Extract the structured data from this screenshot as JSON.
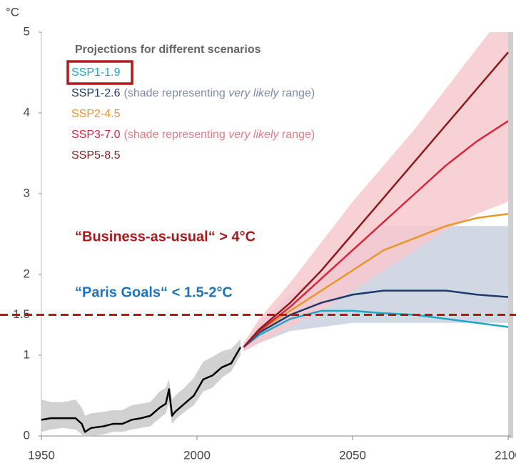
{
  "chart_data": {
    "type": "line",
    "y_label": "°C",
    "xlim": [
      1950,
      2100
    ],
    "xticks": [
      1950,
      2000,
      2050,
      2100
    ],
    "ylim": [
      0,
      5
    ],
    "yticks": [
      0,
      1,
      1.5,
      2,
      3,
      4,
      5
    ],
    "legend_title": "Projections for different scenarios",
    "legend_position": "upper left",
    "reference_line": {
      "value": 1.5,
      "color": "#b11a1a"
    },
    "annotations": [
      {
        "text": "“Business-as-usual“ > 4°C",
        "color": "#a8191e"
      },
      {
        "text": "“Paris Goals“ < 1.5-2°C",
        "color": "#1c74bb"
      }
    ],
    "series": [
      {
        "color": "#000000",
        "range_color": "#c9c9c9",
        "x": [
          1950,
          1953,
          1957,
          1961,
          1963,
          1964,
          1966,
          1970,
          1973,
          1976,
          1979,
          1982,
          1985,
          1988,
          1990,
          1991,
          1992,
          1993,
          1996,
          1999,
          2002,
          2005,
          2008,
          2011,
          2014
        ],
        "values": [
          0.2,
          0.22,
          0.22,
          0.22,
          0.15,
          0.05,
          0.1,
          0.12,
          0.15,
          0.15,
          0.2,
          0.22,
          0.25,
          0.35,
          0.4,
          0.58,
          0.25,
          0.3,
          0.4,
          0.5,
          0.7,
          0.75,
          0.85,
          0.9,
          1.1
        ],
        "low": [
          0.05,
          0.08,
          0.1,
          0.08,
          0.02,
          -0.05,
          0.0,
          0.02,
          0.05,
          0.05,
          0.08,
          0.1,
          0.12,
          0.22,
          0.28,
          0.4,
          0.15,
          0.2,
          0.3,
          0.38,
          0.55,
          0.6,
          0.72,
          0.8,
          1.0
        ],
        "high": [
          0.45,
          0.42,
          0.42,
          0.45,
          0.35,
          0.25,
          0.28,
          0.3,
          0.32,
          0.32,
          0.38,
          0.4,
          0.42,
          0.55,
          0.6,
          0.7,
          0.45,
          0.5,
          0.6,
          0.72,
          0.92,
          0.98,
          1.05,
          1.08,
          1.2
        ]
      },
      {
        "name": "SSP1-1.9",
        "color": "#1fa6c9",
        "x": [
          2015,
          2020,
          2030,
          2040,
          2050,
          2060,
          2070,
          2080,
          2090,
          2100
        ],
        "values": [
          1.1,
          1.25,
          1.45,
          1.55,
          1.55,
          1.52,
          1.5,
          1.45,
          1.4,
          1.35
        ]
      },
      {
        "name": "SSP1-2.6",
        "note": [
          "(shade representing ",
          "very likely",
          " range)"
        ],
        "note_color": "#7d8ca8",
        "color": "#1d3a6e",
        "range_color": "#c9d1de",
        "x": [
          2015,
          2020,
          2030,
          2040,
          2050,
          2060,
          2070,
          2080,
          2090,
          2100
        ],
        "values": [
          1.1,
          1.28,
          1.5,
          1.65,
          1.75,
          1.8,
          1.8,
          1.8,
          1.75,
          1.72
        ],
        "low": [
          1.05,
          1.15,
          1.3,
          1.35,
          1.4,
          1.4,
          1.4,
          1.4,
          1.4,
          1.4
        ],
        "high": [
          1.15,
          1.4,
          1.75,
          2.0,
          2.3,
          2.6,
          2.6,
          2.6,
          2.6,
          2.6
        ]
      },
      {
        "name": "SSP2-4.5",
        "color": "#e9962b",
        "x": [
          2015,
          2020,
          2030,
          2040,
          2050,
          2060,
          2070,
          2080,
          2090,
          2100
        ],
        "values": [
          1.1,
          1.3,
          1.55,
          1.8,
          2.05,
          2.3,
          2.45,
          2.6,
          2.7,
          2.75
        ]
      },
      {
        "name": "SSP3-7.0",
        "note": [
          "(shade representing ",
          "very likely",
          " range)"
        ],
        "note_color": "#e27c86",
        "color": "#d7263d",
        "range_color": "#f7c9ce",
        "x": [
          2015,
          2020,
          2030,
          2040,
          2050,
          2060,
          2070,
          2080,
          2090,
          2100
        ],
        "values": [
          1.1,
          1.3,
          1.6,
          1.95,
          2.3,
          2.65,
          3.0,
          3.35,
          3.65,
          3.9
        ],
        "low": [
          1.05,
          1.15,
          1.35,
          1.55,
          1.8,
          2.05,
          2.3,
          2.55,
          2.75,
          2.9
        ],
        "high": [
          1.15,
          1.45,
          1.9,
          2.4,
          2.9,
          3.35,
          3.8,
          4.3,
          4.8,
          5.3
        ]
      },
      {
        "name": "SSP5-8.5",
        "color": "#8b1a1f",
        "x": [
          2015,
          2020,
          2030,
          2040,
          2050,
          2060,
          2070,
          2080,
          2090,
          2100
        ],
        "values": [
          1.1,
          1.32,
          1.65,
          2.05,
          2.5,
          2.95,
          3.4,
          3.85,
          4.3,
          4.75
        ]
      }
    ]
  }
}
